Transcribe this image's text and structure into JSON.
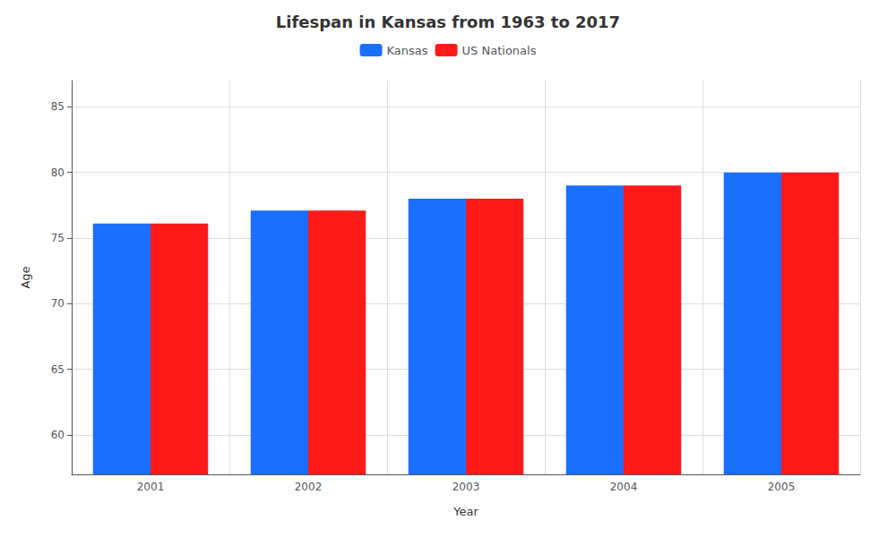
{
  "chart_data": {
    "type": "bar",
    "title": "Lifespan in Kansas from 1963 to 2017",
    "xlabel": "Year",
    "ylabel": "Age",
    "categories": [
      "2001",
      "2002",
      "2003",
      "2004",
      "2005"
    ],
    "series": [
      {
        "name": "Kansas",
        "color": "#1a6fff",
        "values": [
          76.1,
          77.1,
          78.0,
          79.0,
          80.0
        ]
      },
      {
        "name": "US Nationals",
        "color": "#ff1a1a",
        "values": [
          76.1,
          77.1,
          78.0,
          79.0,
          80.0
        ]
      }
    ],
    "ylim": [
      57,
      87
    ],
    "yticks": [
      60,
      65,
      70,
      75,
      80,
      85
    ],
    "grid": true,
    "legend": "top"
  }
}
